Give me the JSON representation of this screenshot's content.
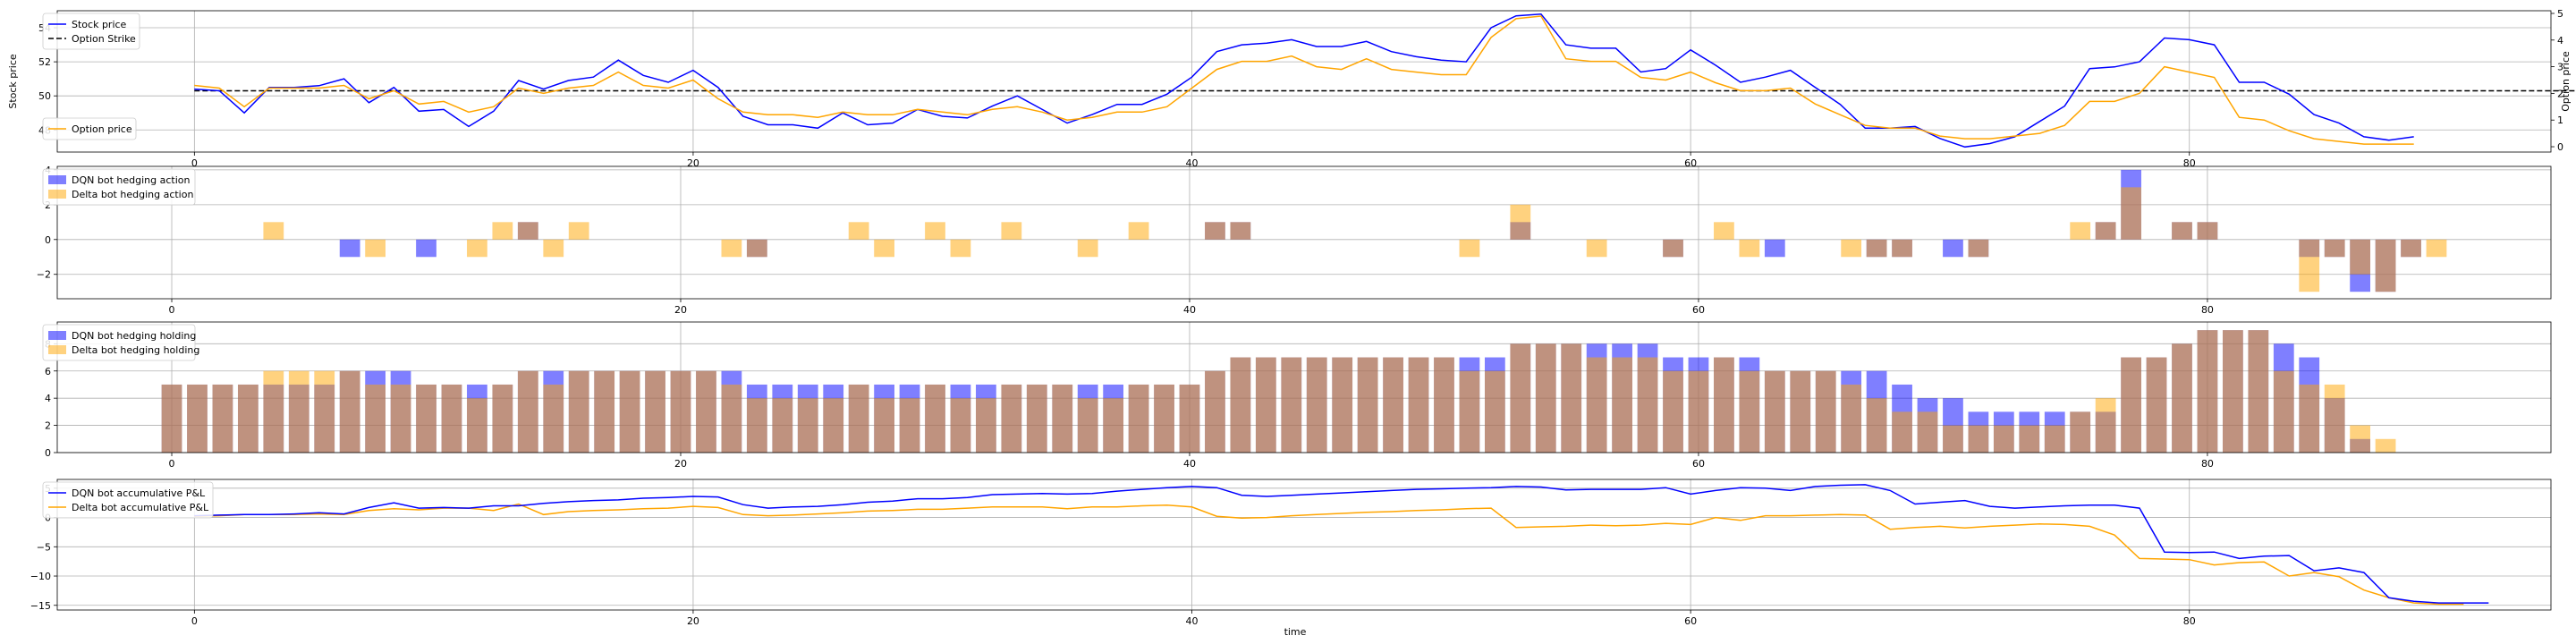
{
  "xlabel": "time",
  "colors": {
    "dqn": "#0000ff",
    "delta": "#ffa500",
    "overlap": "#c0937b",
    "strike": "#000000",
    "grid": "#b0b0b0"
  },
  "chart_data": [
    {
      "type": "line",
      "name": "price",
      "xlim": [
        -5.5,
        94.5
      ],
      "ylim": [
        46.7,
        55.0
      ],
      "y2lim": [
        -0.2,
        5.1
      ],
      "xticks": [
        "0",
        "20",
        "40",
        "60",
        "80"
      ],
      "yticks": [
        "48",
        "50",
        "52",
        "54"
      ],
      "y2ticks": [
        "0",
        "1",
        "2",
        "3",
        "4",
        "5"
      ],
      "ylabel": "Stock price",
      "y2label": "Option price",
      "legend_left": [
        "Stock price",
        "Option Strike"
      ],
      "legend_right": [
        "Option price"
      ],
      "strike": 50.3,
      "stock": [
        50.4,
        50.3,
        49.0,
        50.5,
        50.5,
        50.6,
        51.0,
        49.6,
        50.5,
        49.1,
        49.2,
        48.2,
        49.1,
        50.9,
        50.4,
        50.9,
        51.1,
        52.1,
        51.2,
        50.8,
        51.5,
        50.5,
        48.8,
        48.3,
        48.3,
        48.1,
        49.0,
        48.3,
        48.4,
        49.2,
        48.8,
        48.7,
        49.4,
        50.0,
        49.2,
        48.4,
        48.9,
        49.5,
        49.5,
        50.1,
        51.1,
        52.6,
        53.0,
        53.1,
        53.3,
        52.9,
        52.9,
        53.2,
        52.6,
        52.3,
        52.1,
        52.0,
        54.0,
        54.7,
        54.8,
        53.0,
        52.8,
        52.8,
        51.4,
        51.6,
        52.7,
        51.8,
        50.8,
        51.1,
        51.5,
        50.5,
        49.5,
        48.1,
        48.1,
        48.2,
        47.5,
        47.0,
        47.2,
        47.6,
        48.5,
        49.4,
        51.6,
        51.7,
        52.0,
        53.4,
        53.3,
        53.0,
        50.8,
        50.8,
        50.1,
        48.9,
        48.4,
        47.6,
        47.4,
        47.6
      ],
      "option": [
        2.3,
        2.2,
        1.5,
        2.2,
        2.2,
        2.2,
        2.3,
        1.8,
        2.1,
        1.6,
        1.7,
        1.3,
        1.5,
        2.2,
        2.0,
        2.2,
        2.3,
        2.8,
        2.3,
        2.2,
        2.5,
        1.8,
        1.3,
        1.2,
        1.2,
        1.1,
        1.3,
        1.2,
        1.2,
        1.4,
        1.3,
        1.2,
        1.4,
        1.5,
        1.3,
        1.0,
        1.1,
        1.3,
        1.3,
        1.5,
        2.2,
        2.9,
        3.2,
        3.2,
        3.4,
        3.0,
        2.9,
        3.3,
        2.9,
        2.8,
        2.7,
        2.7,
        4.1,
        4.8,
        4.9,
        3.3,
        3.2,
        3.2,
        2.6,
        2.5,
        2.8,
        2.4,
        2.1,
        2.1,
        2.2,
        1.6,
        1.2,
        0.8,
        0.7,
        0.7,
        0.4,
        0.3,
        0.3,
        0.4,
        0.5,
        0.8,
        1.7,
        1.7,
        2.0,
        3.0,
        2.8,
        2.6,
        1.1,
        1.0,
        0.6,
        0.3,
        0.2,
        0.1,
        0.1,
        0.1
      ]
    },
    {
      "type": "bar",
      "name": "action",
      "xlim": [
        -4.5,
        93.5
      ],
      "ylim": [
        -3.4,
        4.2
      ],
      "xticks": [
        "0",
        "20",
        "40",
        "60",
        "80"
      ],
      "yticks": [
        "−2",
        "0",
        "2",
        "4"
      ],
      "series": [
        {
          "name": "DQN bot hedging action",
          "values": [
            0,
            0,
            0,
            0,
            0,
            0,
            0,
            -1,
            0,
            0,
            -1,
            0,
            0,
            0,
            1,
            0,
            0,
            0,
            0,
            0,
            0,
            0,
            0,
            -1,
            0,
            0,
            0,
            0,
            0,
            0,
            0,
            0,
            0,
            0,
            0,
            0,
            0,
            0,
            0,
            0,
            0,
            1,
            1,
            0,
            0,
            0,
            0,
            0,
            0,
            0,
            0,
            0,
            0,
            1,
            0,
            0,
            0,
            0,
            0,
            -1,
            0,
            0,
            0,
            -1,
            0,
            0,
            0,
            -1,
            -1,
            0,
            -1,
            -1,
            0,
            0,
            0,
            0,
            1,
            4,
            0,
            1,
            1,
            0,
            0,
            0,
            -1,
            -1,
            -3,
            -3,
            -1,
            0
          ]
        },
        {
          "name": "Delta bot hedging action",
          "values": [
            0,
            0,
            0,
            0,
            1,
            0,
            0,
            0,
            -1,
            0,
            0,
            0,
            -1,
            1,
            1,
            -1,
            1,
            0,
            0,
            0,
            0,
            0,
            -1,
            -1,
            0,
            0,
            0,
            1,
            -1,
            0,
            1,
            -1,
            0,
            1,
            0,
            0,
            -1,
            0,
            1,
            0,
            0,
            1,
            1,
            0,
            0,
            0,
            0,
            0,
            0,
            0,
            0,
            -1,
            0,
            2,
            0,
            0,
            -1,
            0,
            0,
            -1,
            0,
            1,
            -1,
            0,
            0,
            0,
            -1,
            -1,
            -1,
            0,
            0,
            -1,
            0,
            0,
            0,
            1,
            1,
            3,
            0,
            1,
            1,
            0,
            0,
            0,
            -3,
            -1,
            -2,
            -3,
            -1,
            -1
          ]
        }
      ]
    },
    {
      "type": "bar",
      "name": "holding",
      "xlim": [
        -4.5,
        93.5
      ],
      "ylim": [
        0,
        9.6
      ],
      "xticks": [
        "0",
        "20",
        "40",
        "60",
        "80"
      ],
      "yticks": [
        "0",
        "2",
        "4",
        "6",
        "8"
      ],
      "series": [
        {
          "name": "DQN bot hedging holding",
          "values": [
            5,
            5,
            5,
            5,
            5,
            5,
            5,
            6,
            6,
            6,
            5,
            5,
            5,
            5,
            6,
            6,
            6,
            6,
            6,
            6,
            6,
            6,
            6,
            5,
            5,
            5,
            5,
            5,
            5,
            5,
            5,
            5,
            5,
            5,
            5,
            5,
            5,
            5,
            5,
            5,
            5,
            6,
            7,
            7,
            7,
            7,
            7,
            7,
            7,
            7,
            7,
            7,
            7,
            8,
            8,
            8,
            8,
            8,
            8,
            7,
            7,
            7,
            7,
            6,
            6,
            6,
            6,
            6,
            5,
            4,
            4,
            3,
            3,
            3,
            3,
            3,
            3,
            7,
            7,
            8,
            9,
            9,
            9,
            8,
            7,
            4,
            1,
            0,
            0,
            0
          ]
        },
        {
          "name": "Delta bot hedging holding",
          "values": [
            5,
            5,
            5,
            5,
            6,
            6,
            6,
            6,
            5,
            5,
            5,
            5,
            4,
            5,
            6,
            5,
            6,
            6,
            6,
            6,
            6,
            6,
            5,
            4,
            4,
            4,
            4,
            5,
            4,
            4,
            5,
            4,
            4,
            5,
            5,
            5,
            4,
            4,
            5,
            5,
            5,
            6,
            7,
            7,
            7,
            7,
            7,
            7,
            7,
            7,
            7,
            6,
            6,
            8,
            8,
            8,
            7,
            7,
            7,
            6,
            6,
            7,
            6,
            6,
            6,
            6,
            5,
            4,
            3,
            3,
            2,
            2,
            2,
            2,
            2,
            3,
            4,
            7,
            7,
            8,
            9,
            9,
            9,
            6,
            5,
            5,
            2,
            1,
            0,
            0
          ]
        }
      ]
    },
    {
      "type": "line",
      "name": "pnl",
      "xlim": [
        -5.5,
        94.5
      ],
      "ylim": [
        -15.8,
        6.5
      ],
      "xticks": [
        "0",
        "20",
        "40",
        "60",
        "80"
      ],
      "yticks": [
        "−15",
        "−10",
        "−5",
        "0",
        "5"
      ],
      "xlabel": "time",
      "series": [
        {
          "name": "DQN bot accumulative P&L",
          "values": [
            0.3,
            0.4,
            0.5,
            0.5,
            0.6,
            0.8,
            0.6,
            1.7,
            2.5,
            1.6,
            1.7,
            1.6,
            2.0,
            2.0,
            2.4,
            2.7,
            2.9,
            3.0,
            3.3,
            3.4,
            3.6,
            3.5,
            2.2,
            1.6,
            1.8,
            1.9,
            2.2,
            2.6,
            2.8,
            3.2,
            3.2,
            3.4,
            3.9,
            4.0,
            4.1,
            4.0,
            4.1,
            4.5,
            4.8,
            5.1,
            5.3,
            5.1,
            3.8,
            3.6,
            3.8,
            4.0,
            4.2,
            4.4,
            4.6,
            4.8,
            4.9,
            5.0,
            5.1,
            5.3,
            5.2,
            4.7,
            4.8,
            4.8,
            4.8,
            5.1,
            4.0,
            4.6,
            5.1,
            5.0,
            4.6,
            5.3,
            5.5,
            5.6,
            4.6,
            2.3,
            2.6,
            2.9,
            1.9,
            1.6,
            1.8,
            2.0,
            2.1,
            2.1,
            1.6,
            -5.9,
            -6.0,
            -5.9,
            -7.0,
            -6.6,
            -6.5,
            -9.1,
            -8.6,
            -9.4,
            -13.7,
            -14.3,
            -14.6,
            -14.6,
            -14.6
          ]
        },
        {
          "name": "Delta bot accumulative P&L",
          "values": [
            0.2,
            0.3,
            0.5,
            0.5,
            0.5,
            0.6,
            0.5,
            1.2,
            1.5,
            1.3,
            1.6,
            1.6,
            1.2,
            2.3,
            0.5,
            1.0,
            1.2,
            1.3,
            1.5,
            1.6,
            1.9,
            1.7,
            0.5,
            0.3,
            0.4,
            0.6,
            0.8,
            1.1,
            1.2,
            1.4,
            1.4,
            1.6,
            1.8,
            1.8,
            1.8,
            1.5,
            1.8,
            1.8,
            2.0,
            2.1,
            1.8,
            0.2,
            -0.1,
            0.0,
            0.3,
            0.5,
            0.7,
            0.9,
            1.0,
            1.2,
            1.3,
            1.5,
            1.6,
            -1.7,
            -1.6,
            -1.5,
            -1.3,
            -1.4,
            -1.3,
            -1.0,
            -1.2,
            0.0,
            -0.5,
            0.3,
            0.3,
            0.4,
            0.5,
            0.4,
            -2.0,
            -1.7,
            -1.5,
            -1.8,
            -1.5,
            -1.3,
            -1.1,
            -1.2,
            -1.5,
            -3.0,
            -7.0,
            -7.1,
            -7.2,
            -8.1,
            -7.7,
            -7.6,
            -10.0,
            -9.4,
            -10.1,
            -12.4,
            -13.7,
            -14.6,
            -14.8,
            -14.8
          ]
        }
      ]
    }
  ]
}
